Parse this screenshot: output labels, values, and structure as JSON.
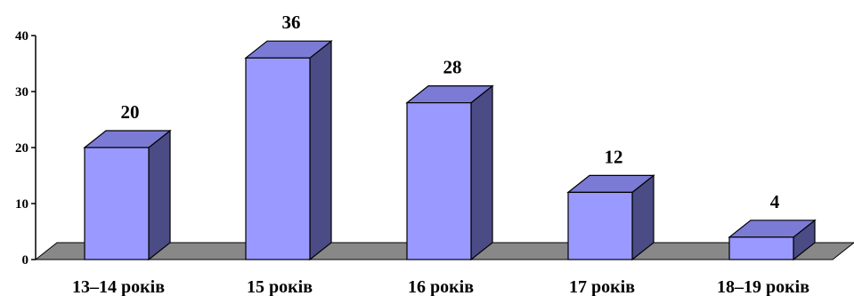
{
  "chart_data": {
    "type": "bar",
    "categories": [
      "13–14 років",
      "15 років",
      "16 років",
      "17 років",
      "18–19 років"
    ],
    "values": [
      20,
      36,
      28,
      12,
      4
    ],
    "data_labels": [
      "20",
      "36",
      "28",
      "12",
      "4"
    ],
    "ylim": [
      0,
      40
    ],
    "yticks": [
      "0",
      "10",
      "20",
      "30",
      "40"
    ],
    "title": "",
    "xlabel": "",
    "ylabel": "",
    "grid": false,
    "style": "3d-column",
    "colors": {
      "bar_front": "#9999ff",
      "bar_top": "#7b7bd6",
      "bar_side": "#4b4b85",
      "floor": "#888888",
      "outline": "#000000"
    }
  }
}
